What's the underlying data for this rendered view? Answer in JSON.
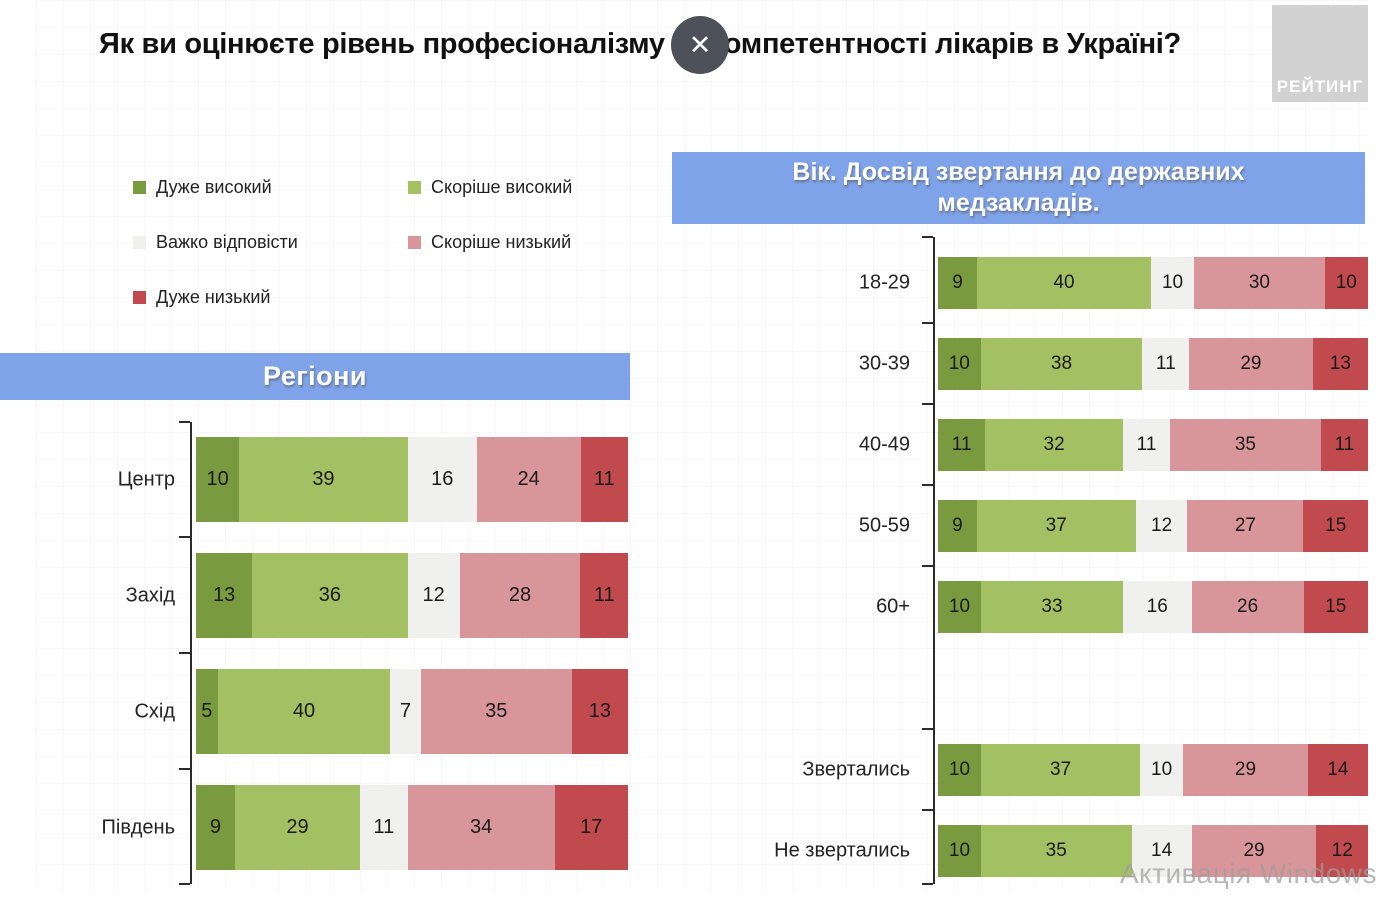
{
  "header": {
    "title": "Як ви оцінюєте рівень професіоналізму та компетентності лікарів в Україні?",
    "close_glyph": "✕",
    "logo_text": "РЕЙТИНГ"
  },
  "watermark": "Активація Windows",
  "colors": {
    "band_blue": "#7FA3E8",
    "axis": "#2B2B2B",
    "very_high": "#7A9A40",
    "rather_high": "#A3C063",
    "hard_to_say": "#F0F0EE",
    "rather_low": "#D9969A",
    "very_low": "#C14A4F"
  },
  "legend": [
    {
      "label": "Дуже високий",
      "color": "#7A9A40"
    },
    {
      "label": "Скоріше високий",
      "color": "#A3C063"
    },
    {
      "label": "Важко відповісти",
      "color": "#F0F0EE"
    },
    {
      "label": "Скоріше низький",
      "color": "#D9969A"
    },
    {
      "label": "Дуже низький",
      "color": "#C14A4F"
    }
  ],
  "sections": {
    "left_band_lines": [
      "Регіони"
    ],
    "right_band_lines": [
      "Вік. Досвід звертання до державних",
      "медзакладів."
    ]
  },
  "chart_data": [
    {
      "type": "bar",
      "orientation": "horizontal",
      "stacked": true,
      "value_labels": true,
      "title": "Регіони",
      "xlim": [
        0,
        100
      ],
      "categories": [
        "Центр",
        "Захід",
        "Схід",
        "Південь"
      ],
      "series": [
        {
          "name": "Дуже високий",
          "color": "#7A9A40",
          "values": [
            10,
            13,
            5,
            9
          ]
        },
        {
          "name": "Скоріше високий",
          "color": "#A3C063",
          "values": [
            39,
            36,
            40,
            29
          ]
        },
        {
          "name": "Важко відповісти",
          "color": "#F0F0EE",
          "values": [
            16,
            12,
            7,
            11
          ]
        },
        {
          "name": "Скоріше низький",
          "color": "#D9969A",
          "values": [
            24,
            28,
            35,
            34
          ]
        },
        {
          "name": "Дуже низький",
          "color": "#C14A4F",
          "values": [
            11,
            11,
            13,
            17
          ]
        }
      ]
    },
    {
      "type": "bar",
      "orientation": "horizontal",
      "stacked": true,
      "value_labels": true,
      "title": "Вік. Досвід звертання до державних медзакладів.",
      "xlim": [
        0,
        100
      ],
      "categories": [
        "18-29",
        "30-39",
        "40-49",
        "50-59",
        "60+",
        "Звертались",
        "Не звертались"
      ],
      "spacer_after_index": 4,
      "series": [
        {
          "name": "Дуже високий",
          "color": "#7A9A40",
          "values": [
            9,
            10,
            11,
            9,
            10,
            10,
            10
          ]
        },
        {
          "name": "Скоріше високий",
          "color": "#A3C063",
          "values": [
            40,
            38,
            32,
            37,
            33,
            37,
            35
          ]
        },
        {
          "name": "Важко відповісти",
          "color": "#F0F0EE",
          "values": [
            10,
            11,
            11,
            12,
            16,
            10,
            14
          ]
        },
        {
          "name": "Скоріше низький",
          "color": "#D9969A",
          "values": [
            30,
            29,
            35,
            27,
            26,
            29,
            29
          ]
        },
        {
          "name": "Дуже низький",
          "color": "#C14A4F",
          "values": [
            10,
            13,
            11,
            15,
            15,
            14,
            12
          ]
        }
      ]
    }
  ]
}
